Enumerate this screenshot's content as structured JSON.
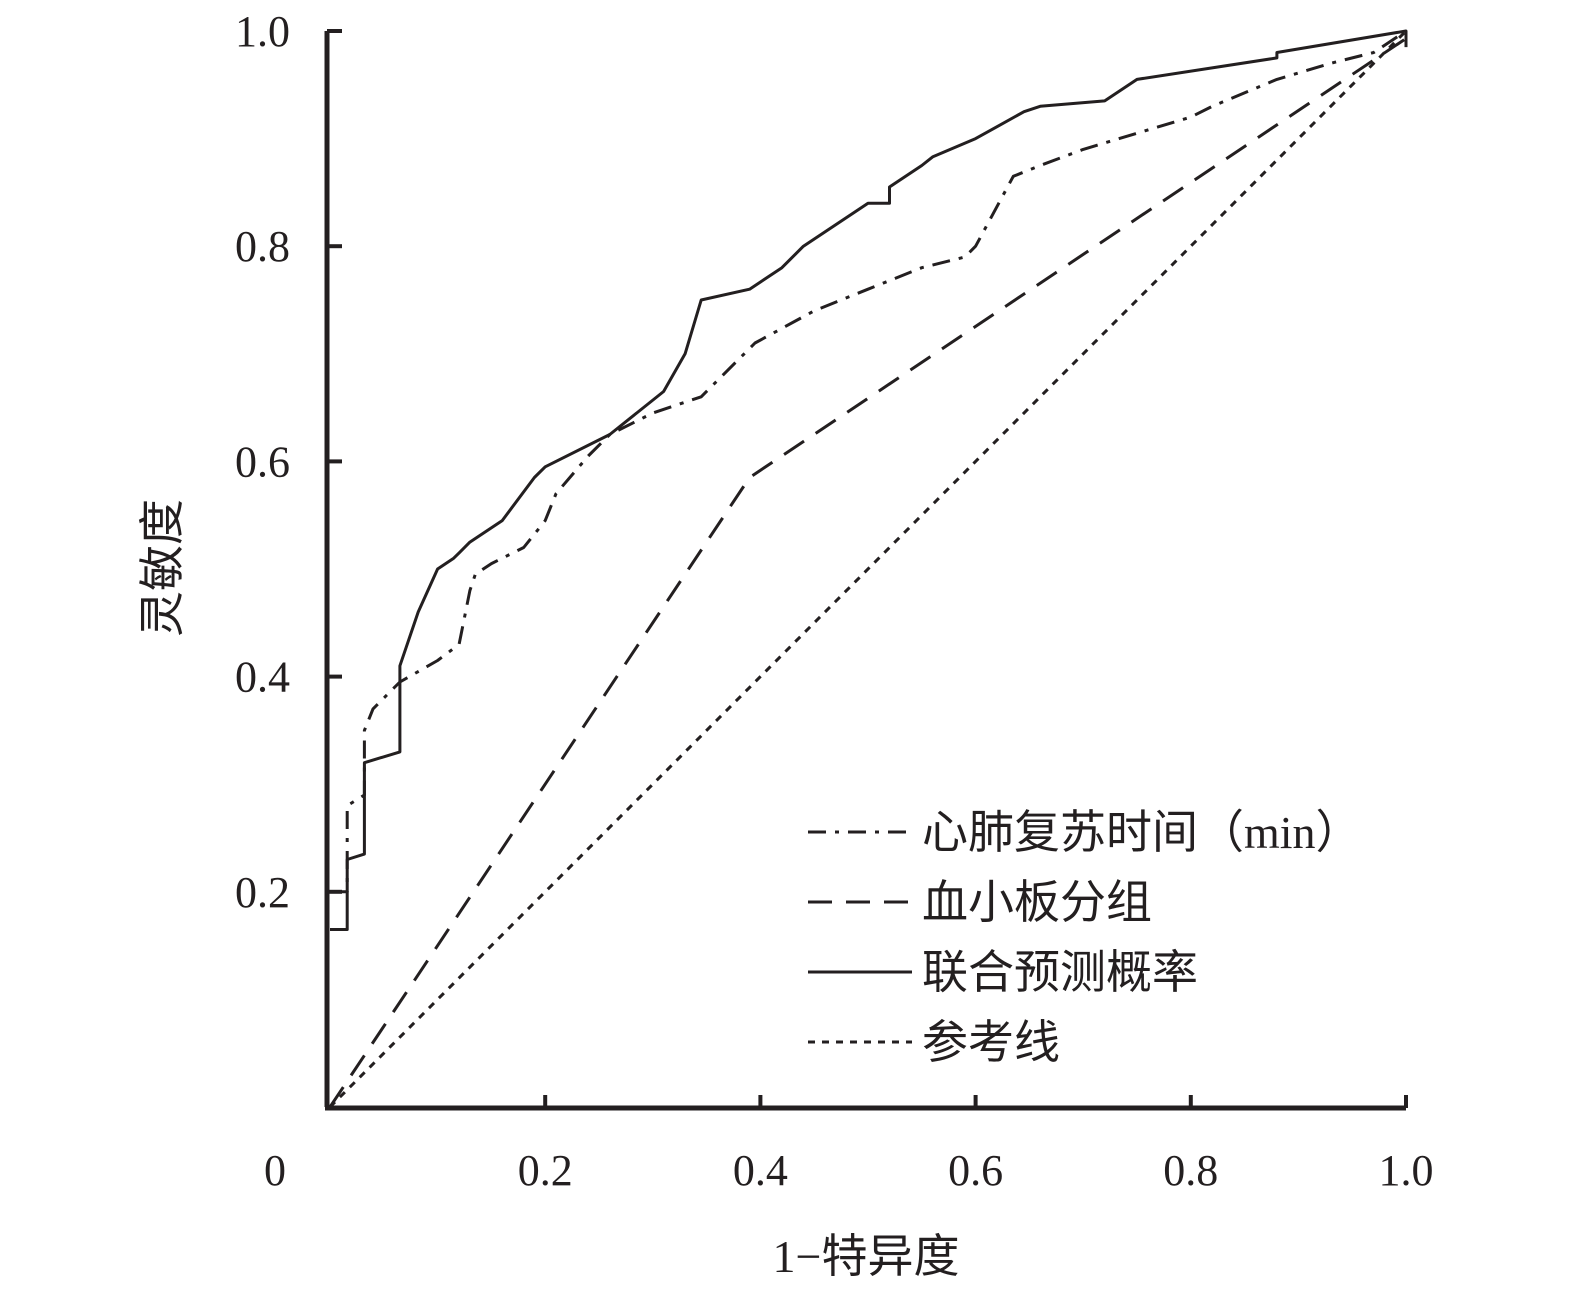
{
  "chart_data": {
    "type": "line",
    "xlabel": "1−特异度",
    "ylabel": "灵敏度",
    "xlim": [
      0,
      1.0
    ],
    "ylim": [
      0,
      1.0
    ],
    "x_ticks": [
      {
        "value": 0,
        "label": "0"
      },
      {
        "value": 0.2,
        "label": "0.2"
      },
      {
        "value": 0.4,
        "label": "0.4"
      },
      {
        "value": 0.6,
        "label": "0.6"
      },
      {
        "value": 0.8,
        "label": "0.8"
      },
      {
        "value": 1.0,
        "label": "1.0"
      }
    ],
    "y_ticks": [
      {
        "value": 0.2,
        "label": "0.2"
      },
      {
        "value": 0.4,
        "label": "0.4"
      },
      {
        "value": 0.6,
        "label": "0.6"
      },
      {
        "value": 0.8,
        "label": "0.8"
      },
      {
        "value": 1.0,
        "label": "1.0"
      }
    ],
    "grid": false,
    "legend_position": "bottom-right",
    "line_color": "#231f20",
    "series": [
      {
        "name": "心肺复苏时间（min）",
        "style": "dashdot",
        "points": [
          [
            0,
            0.2
          ],
          [
            0.016,
            0.2
          ],
          [
            0.016,
            0.28
          ],
          [
            0.032,
            0.29
          ],
          [
            0.032,
            0.35
          ],
          [
            0.04,
            0.37
          ],
          [
            0.065,
            0.395
          ],
          [
            0.1,
            0.415
          ],
          [
            0.12,
            0.43
          ],
          [
            0.13,
            0.48
          ],
          [
            0.135,
            0.495
          ],
          [
            0.15,
            0.505
          ],
          [
            0.18,
            0.52
          ],
          [
            0.2,
            0.545
          ],
          [
            0.21,
            0.57
          ],
          [
            0.24,
            0.605
          ],
          [
            0.26,
            0.625
          ],
          [
            0.3,
            0.645
          ],
          [
            0.345,
            0.66
          ],
          [
            0.395,
            0.71
          ],
          [
            0.45,
            0.74
          ],
          [
            0.5,
            0.76
          ],
          [
            0.55,
            0.78
          ],
          [
            0.59,
            0.79
          ],
          [
            0.6,
            0.8
          ],
          [
            0.635,
            0.865
          ],
          [
            0.66,
            0.875
          ],
          [
            0.7,
            0.89
          ],
          [
            0.75,
            0.905
          ],
          [
            0.8,
            0.92
          ],
          [
            0.82,
            0.93
          ],
          [
            0.88,
            0.955
          ],
          [
            0.93,
            0.97
          ],
          [
            0.97,
            0.98
          ],
          [
            1.0,
            1.0
          ]
        ]
      },
      {
        "name": "血小板分组",
        "style": "dashed",
        "points": [
          [
            0,
            0
          ],
          [
            0.39,
            0.585
          ],
          [
            1.0,
            0.993
          ],
          [
            1.0,
            1.0
          ]
        ]
      },
      {
        "name": "联合预测概率",
        "style": "solid",
        "points": [
          [
            0,
            0.165
          ],
          [
            0.016,
            0.165
          ],
          [
            0.016,
            0.23
          ],
          [
            0.032,
            0.235
          ],
          [
            0.032,
            0.32
          ],
          [
            0.065,
            0.33
          ],
          [
            0.065,
            0.41
          ],
          [
            0.082,
            0.46
          ],
          [
            0.1,
            0.5
          ],
          [
            0.115,
            0.51
          ],
          [
            0.12,
            0.515
          ],
          [
            0.13,
            0.525
          ],
          [
            0.16,
            0.545
          ],
          [
            0.19,
            0.585
          ],
          [
            0.2,
            0.595
          ],
          [
            0.26,
            0.625
          ],
          [
            0.31,
            0.665
          ],
          [
            0.33,
            0.7
          ],
          [
            0.345,
            0.75
          ],
          [
            0.39,
            0.76
          ],
          [
            0.42,
            0.78
          ],
          [
            0.44,
            0.8
          ],
          [
            0.5,
            0.84
          ],
          [
            0.52,
            0.84
          ],
          [
            0.52,
            0.855
          ],
          [
            0.55,
            0.875
          ],
          [
            0.56,
            0.883
          ],
          [
            0.6,
            0.9
          ],
          [
            0.645,
            0.925
          ],
          [
            0.66,
            0.93
          ],
          [
            0.72,
            0.935
          ],
          [
            0.75,
            0.955
          ],
          [
            0.88,
            0.975
          ],
          [
            0.88,
            0.98
          ],
          [
            1.0,
            1.0
          ],
          [
            1.0,
            0.985
          ]
        ]
      },
      {
        "name": "参考线",
        "style": "dotted",
        "points": [
          [
            0,
            0
          ],
          [
            1.0,
            1.0
          ]
        ]
      }
    ]
  }
}
